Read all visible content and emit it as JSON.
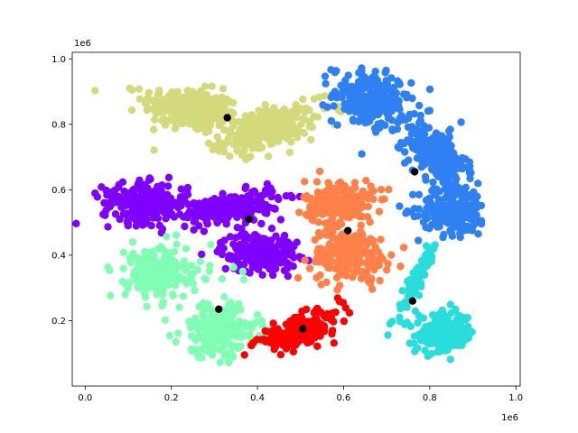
{
  "chart_data": {
    "type": "scatter",
    "title": "",
    "xlabel": "",
    "ylabel": "",
    "x_offset_label": "1e6",
    "y_offset_label": "1e6",
    "xlim": [
      -0.03,
      1.01
    ],
    "ylim": [
      0.0,
      1.02
    ],
    "x_ticks": [
      0.0,
      0.2,
      0.4,
      0.6,
      0.8,
      1.0
    ],
    "x_tick_labels": [
      "0.0",
      "0.2",
      "0.4",
      "0.6",
      "0.8",
      "1.0"
    ],
    "y_ticks": [
      0.2,
      0.4,
      0.6,
      0.8,
      1.0
    ],
    "y_tick_labels": [
      "0.2",
      "0.4",
      "0.6",
      "0.8",
      "1.0"
    ],
    "grid": false,
    "legend": "none",
    "clusters": [
      {
        "color": "#d4d97c",
        "blobs": [
          {
            "cx": 0.245,
            "cy": 0.845,
            "sx": 0.055,
            "sy": 0.035,
            "rho": -0.3,
            "n": 260
          },
          {
            "cx": 0.425,
            "cy": 0.785,
            "sx": 0.055,
            "sy": 0.035,
            "rho": 0.5,
            "n": 260
          },
          {
            "cx": 0.59,
            "cy": 0.86,
            "sx": 0.02,
            "sy": 0.015,
            "rho": 0.0,
            "n": 12
          }
        ]
      },
      {
        "color": "#2f80f2",
        "blobs": [
          {
            "cx": 0.665,
            "cy": 0.875,
            "sx": 0.045,
            "sy": 0.045,
            "rho": -0.2,
            "n": 220
          },
          {
            "cx": 0.815,
            "cy": 0.71,
            "sx": 0.035,
            "sy": 0.045,
            "rho": -0.5,
            "n": 220
          },
          {
            "cx": 0.855,
            "cy": 0.54,
            "sx": 0.04,
            "sy": 0.04,
            "rho": 0.0,
            "n": 220
          }
        ]
      },
      {
        "color": "#7f00ff",
        "blobs": [
          {
            "cx": 0.14,
            "cy": 0.56,
            "sx": 0.05,
            "sy": 0.03,
            "rho": 0.0,
            "n": 240
          },
          {
            "cx": 0.34,
            "cy": 0.545,
            "sx": 0.055,
            "sy": 0.025,
            "rho": 0.5,
            "n": 220
          },
          {
            "cx": 0.405,
            "cy": 0.41,
            "sx": 0.045,
            "sy": 0.03,
            "rho": 0.0,
            "n": 200
          }
        ]
      },
      {
        "color": "#ff8048",
        "blobs": [
          {
            "cx": 0.59,
            "cy": 0.56,
            "sx": 0.04,
            "sy": 0.035,
            "rho": 0.0,
            "n": 200
          },
          {
            "cx": 0.615,
            "cy": 0.4,
            "sx": 0.045,
            "sy": 0.04,
            "rho": 0.0,
            "n": 220
          }
        ]
      },
      {
        "color": "#80ffb4",
        "blobs": [
          {
            "cx": 0.165,
            "cy": 0.345,
            "sx": 0.035,
            "sy": 0.04,
            "rho": 0.0,
            "n": 200
          },
          {
            "cx": 0.31,
            "cy": 0.17,
            "sx": 0.045,
            "sy": 0.04,
            "rho": 0.0,
            "n": 220
          },
          {
            "cx": 0.27,
            "cy": 0.34,
            "sx": 0.04,
            "sy": 0.02,
            "rho": 0.0,
            "n": 15
          }
        ]
      },
      {
        "color": "#ff0000",
        "blobs": [
          {
            "cx": 0.495,
            "cy": 0.17,
            "sx": 0.05,
            "sy": 0.03,
            "rho": 0.7,
            "n": 200
          }
        ]
      },
      {
        "color": "#2adddd",
        "blobs": [
          {
            "cx": 0.835,
            "cy": 0.16,
            "sx": 0.035,
            "sy": 0.03,
            "rho": 0.0,
            "n": 200
          },
          {
            "cx": 0.77,
            "cy": 0.33,
            "sx": 0.025,
            "sy": 0.06,
            "rho": 0.95,
            "n": 90
          }
        ]
      }
    ],
    "centroids": {
      "color": "#000000",
      "x": [
        0.33,
        0.765,
        0.38,
        0.61,
        0.31,
        0.505,
        0.76
      ],
      "y": [
        0.82,
        0.655,
        0.51,
        0.475,
        0.235,
        0.175,
        0.26
      ]
    }
  }
}
